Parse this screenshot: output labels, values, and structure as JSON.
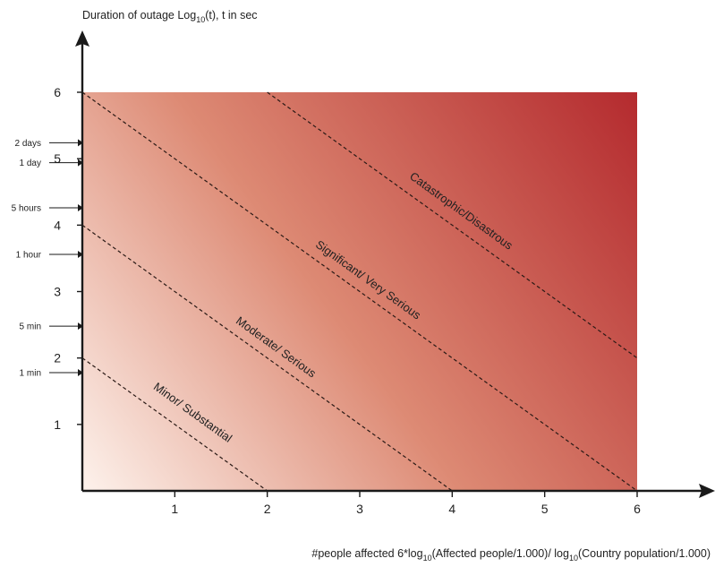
{
  "chart_data": {
    "type": "area",
    "title": "",
    "ylabel": "Duration of outage Log10(t), t in sec",
    "ylabel_parts": {
      "main": "Duration of outage Log",
      "sub": "10",
      "rest": "(t), t in sec"
    },
    "xlabel": "#people affected 6*log10(Affected people/1.000)/ log10(Country population/1.000)",
    "xlabel_parts": {
      "a": "#people affected 6*log",
      "sub1": "10",
      "b": "(Affected people/1.000)/ log",
      "sub2": "10",
      "c": "(Country population/1.000)"
    },
    "xlim": [
      0,
      6
    ],
    "ylim": [
      0,
      6
    ],
    "x_ticks": [
      "1",
      "2",
      "3",
      "4",
      "5",
      "6"
    ],
    "y_ticks": [
      "1",
      "2",
      "3",
      "4",
      "5",
      "6"
    ],
    "time_markers": [
      {
        "label": "1 min",
        "value": 1.78
      },
      {
        "label": "5 min",
        "value": 2.48
      },
      {
        "label": "1 hour",
        "value": 3.56
      },
      {
        "label": "5 hours",
        "value": 4.26
      },
      {
        "label": "1 day",
        "value": 4.94
      },
      {
        "label": "2 days",
        "value": 5.24
      }
    ],
    "gradient_colors": {
      "low": "#fdf2ec",
      "mid": "#dd8a74",
      "high": "#b42a2e"
    },
    "threshold_lines": [
      {
        "sum": 2,
        "label": "Minor/ Substantial"
      },
      {
        "sum": 4,
        "label": "Moderate/ Serious"
      },
      {
        "sum": 6,
        "label": "Significant/ Very Serious"
      },
      {
        "sum": 8,
        "label": "Catastrophic/Disastrous"
      }
    ],
    "grid": false
  }
}
